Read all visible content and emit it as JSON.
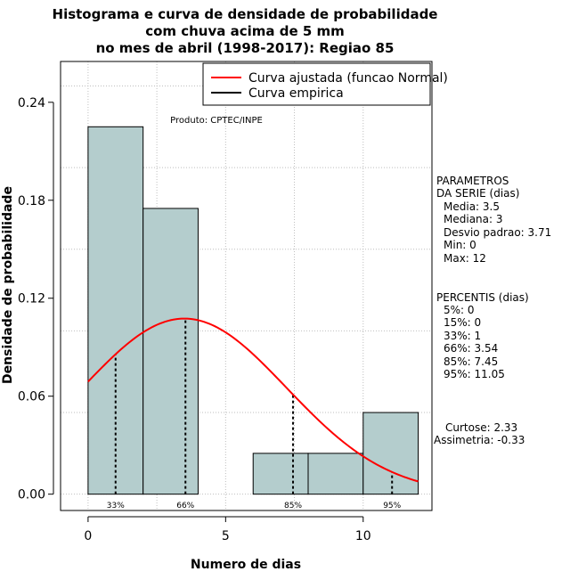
{
  "chart_data": {
    "type": "bar",
    "title_lines": [
      "Histograma e curva de densidade de probabilidade",
      "com chuva acima de 5 mm",
      "no mes de abril (1998-2017): Regiao 85"
    ],
    "xlabel": "Numero de dias",
    "ylabel": "Densidade de probabilidade",
    "xlim": [
      -1,
      12.5
    ],
    "ylim": [
      -0.01,
      0.265
    ],
    "xticks": [
      0,
      5,
      10
    ],
    "yticks": [
      0.0,
      0.06,
      0.12,
      0.18,
      0.24
    ],
    "ytick_labels": [
      "0.00",
      "0.06",
      "0.12",
      "0.18",
      "0.24"
    ],
    "xgrid": [
      0,
      2.5,
      5,
      7.5,
      10
    ],
    "ygrid": [
      0.0,
      0.05,
      0.1,
      0.15,
      0.2,
      0.25
    ],
    "grid": true,
    "bins": [
      {
        "x0": 0,
        "x1": 2,
        "density": 0.225
      },
      {
        "x0": 2,
        "x1": 4,
        "density": 0.175
      },
      {
        "x0": 4,
        "x1": 6,
        "density": 0.0
      },
      {
        "x0": 6,
        "x1": 8,
        "density": 0.025
      },
      {
        "x0": 8,
        "x1": 10,
        "density": 0.025
      },
      {
        "x0": 10,
        "x1": 12,
        "density": 0.05
      }
    ],
    "normal_curve": {
      "mean": 3.5,
      "sd": 3.71,
      "x_from": 0,
      "x_to": 12
    },
    "percentile_lines": [
      {
        "label": "33%",
        "x": 1
      },
      {
        "label": "66%",
        "x": 3.54
      },
      {
        "label": "85%",
        "x": 7.45
      },
      {
        "label": "95%",
        "x": 11.05
      }
    ],
    "legend": {
      "position": "top-right",
      "entries": [
        {
          "label": "Curva ajustada (funcao Normal)",
          "color": "#ff0000"
        },
        {
          "label": "Curva empirica",
          "color": "#000000"
        }
      ]
    },
    "annotation": "Produto: CPTEC/INPE",
    "parametros": [
      "PARAMETROS",
      "DA SERIE (dias)",
      "Media: 3.5",
      "Mediana: 3",
      "Desvio padrao: 3.71",
      "Min: 0",
      "Max: 12"
    ],
    "percentis": [
      "PERCENTIS (dias)",
      "5%: 0",
      "15%: 0",
      "33%: 1",
      "66%: 3.54",
      "85%: 7.45",
      "95%: 11.05"
    ],
    "stats": [
      "Curtose: 2.33",
      "Assimetria: -0.33"
    ],
    "colors": {
      "bar_fill": "#b4cdcd",
      "curve": "#ff0000",
      "grid": "#bebebe"
    }
  }
}
